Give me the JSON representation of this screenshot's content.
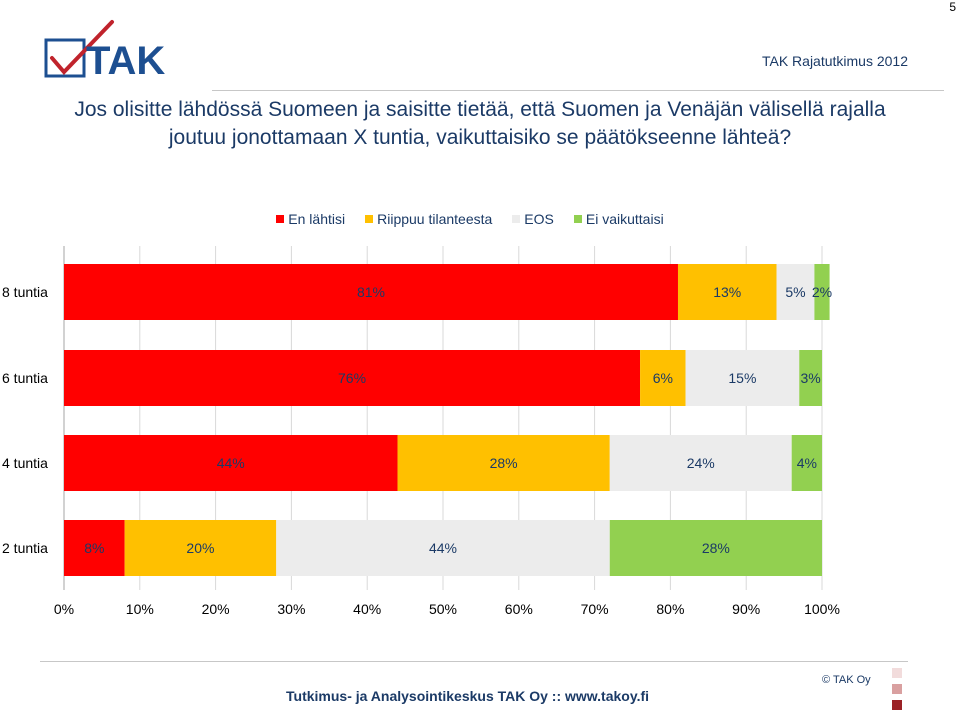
{
  "page_number": "5",
  "header": {
    "logo_text": "TAK",
    "right_text": "TAK Rajatutkimus 2012"
  },
  "question": "Jos olisitte lähdössä Suomeen ja saisitte tietää, että Suomen ja Venäjän välisellä rajalla joutuu jonottamaan X tuntia, vaikuttaisiko se päätökseenne lähteä?",
  "chart_data": {
    "type": "bar",
    "orientation": "horizontal",
    "stacked": true,
    "categories": [
      "8 tuntia",
      "6 tuntia",
      "4 tuntia",
      "2 tuntia"
    ],
    "series": [
      {
        "name": "En lähtisi",
        "color": "#ff0000",
        "values": [
          81,
          76,
          44,
          8
        ],
        "labels": [
          "81%",
          "76%",
          "44%",
          "8%"
        ]
      },
      {
        "name": "Riippuu tilanteesta",
        "color": "#ffc000",
        "values": [
          13,
          6,
          28,
          20
        ],
        "labels": [
          "13%",
          "6%",
          "28%",
          "20%"
        ]
      },
      {
        "name": "EOS",
        "color": "#ececec",
        "values": [
          5,
          15,
          24,
          44
        ],
        "labels": [
          "5%",
          "15%",
          "24%",
          "44%"
        ]
      },
      {
        "name": "Ei vaikuttaisi",
        "color": "#92d050",
        "values": [
          2,
          3,
          4,
          28
        ],
        "labels": [
          "2%",
          "3%",
          "4%",
          "28%"
        ]
      }
    ],
    "xlim": [
      0,
      100
    ],
    "x_ticks": [
      "0%",
      "10%",
      "20%",
      "30%",
      "40%",
      "50%",
      "60%",
      "70%",
      "80%",
      "90%",
      "100%"
    ],
    "grid": "vertical",
    "legend": "top"
  },
  "footer": {
    "text": "Tutkimus- ja Analysointikeskus TAK Oy  ::  www.takoy.fi",
    "copyright": "© TAK Oy"
  },
  "colors": {
    "text": "#1b3a66",
    "logo_blue": "#1d4f91",
    "check_red": "#c0232c"
  }
}
